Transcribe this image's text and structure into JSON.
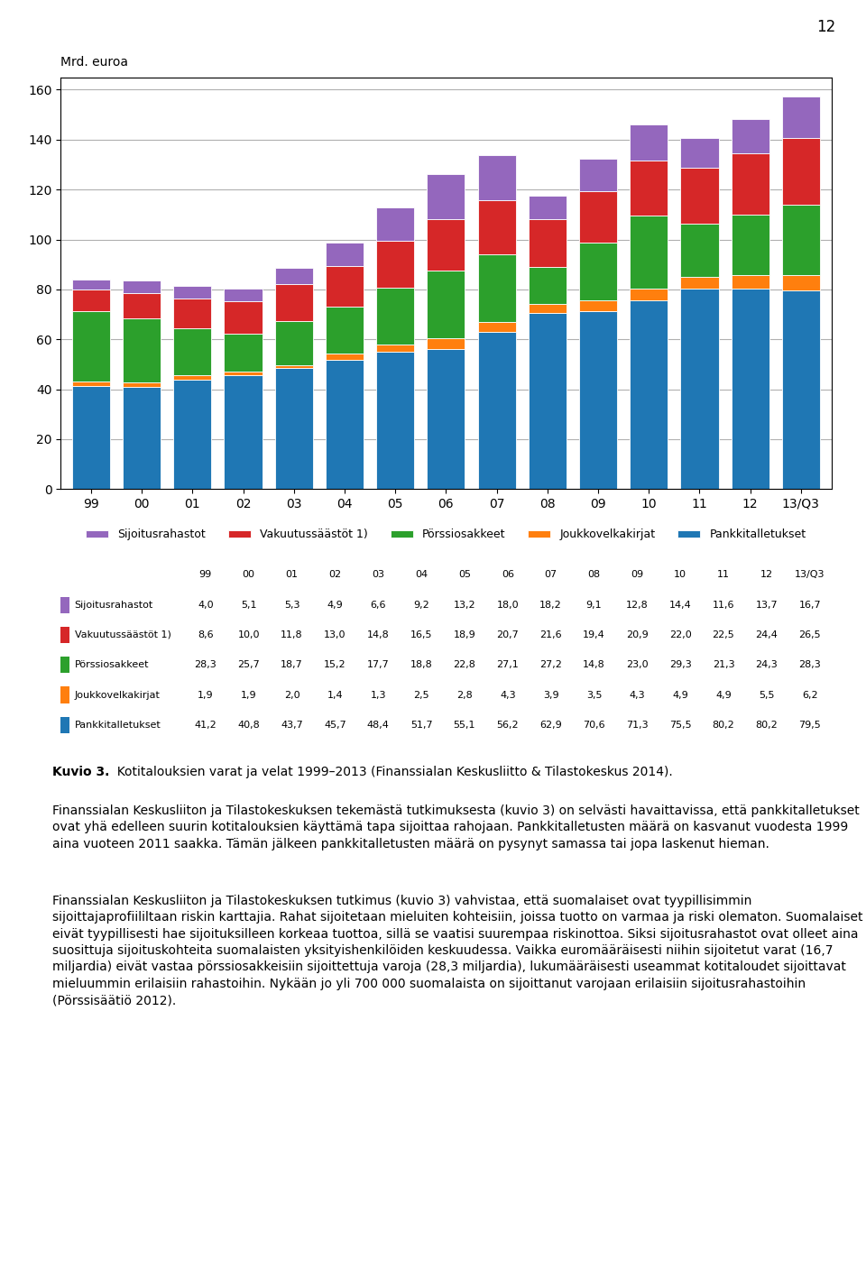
{
  "chart_data": {
    "type": "bar",
    "stacked": true,
    "y_label": "Mrd. euroa",
    "categories": [
      "99",
      "00",
      "01",
      "02",
      "03",
      "04",
      "05",
      "06",
      "07",
      "08",
      "09",
      "10",
      "11",
      "12",
      "13/Q3"
    ],
    "series": [
      {
        "name": "Pankkitalletukset",
        "values": [
          41.2,
          40.8,
          43.7,
          45.7,
          48.4,
          51.7,
          55.1,
          56.2,
          62.9,
          70.6,
          71.3,
          75.5,
          80.2,
          80.2,
          79.5
        ],
        "value_labels": [
          "41,2",
          "40,8",
          "43,7",
          "45,7",
          "48,4",
          "51,7",
          "55,1",
          "56,2",
          "62,9",
          "70,6",
          "71,3",
          "75,5",
          "80,2",
          "80,2",
          "79,5"
        ]
      },
      {
        "name": "Joukkovelkakirjat",
        "values": [
          1.9,
          1.9,
          2.0,
          1.4,
          1.3,
          2.5,
          2.8,
          4.3,
          3.9,
          3.5,
          4.3,
          4.9,
          4.9,
          5.5,
          6.2
        ],
        "value_labels": [
          "1,9",
          "1,9",
          "2,0",
          "1,4",
          "1,3",
          "2,5",
          "2,8",
          "4,3",
          "3,9",
          "3,5",
          "4,3",
          "4,9",
          "4,9",
          "5,5",
          "6,2"
        ]
      },
      {
        "name": "Pörssiosakkeet",
        "values": [
          28.3,
          25.7,
          18.7,
          15.2,
          17.7,
          18.8,
          22.8,
          27.1,
          27.2,
          14.8,
          23.0,
          29.3,
          21.3,
          24.3,
          28.3
        ],
        "value_labels": [
          "28,3",
          "25,7",
          "18,7",
          "15,2",
          "17,7",
          "18,8",
          "22,8",
          "27,1",
          "27,2",
          "14,8",
          "23,0",
          "29,3",
          "21,3",
          "24,3",
          "28,3"
        ]
      },
      {
        "name": "Vakuutussäästöt 1)",
        "values": [
          8.6,
          10.0,
          11.8,
          13.0,
          14.8,
          16.5,
          18.9,
          20.7,
          21.6,
          19.4,
          20.9,
          22.0,
          22.5,
          24.4,
          26.5
        ],
        "value_labels": [
          "8,6",
          "10,0",
          "11,8",
          "13,0",
          "14,8",
          "16,5",
          "18,9",
          "20,7",
          "21,6",
          "19,4",
          "20,9",
          "22,0",
          "22,5",
          "24,4",
          "26,5"
        ]
      },
      {
        "name": "Sijoitusrahastot",
        "values": [
          4.0,
          5.1,
          5.3,
          4.9,
          6.6,
          9.2,
          13.2,
          18.0,
          18.2,
          9.1,
          12.8,
          14.4,
          11.6,
          13.7,
          16.7
        ],
        "value_labels": [
          "4,0",
          "5,1",
          "5,3",
          "4,9",
          "6,6",
          "9,2",
          "13,2",
          "18,0",
          "18,2",
          "9,1",
          "12,8",
          "14,4",
          "11,6",
          "13,7",
          "16,7"
        ]
      }
    ],
    "ylim": [
      0,
      165
    ],
    "yticks": [
      0,
      20,
      40,
      60,
      80,
      100,
      120,
      140,
      160
    ],
    "grid": true,
    "legend": "upper center",
    "annotations": [
      "12",
      "Kuvio 3.",
      "  Kotitalouksien varat ja velat 1999–2013 (Finanssialan Keskusliitto & Tilastokeskus 2014).",
      "Finanssialan Keskusliiton ja Tilastokeskuksen tekemästä tutkimuksesta (kuvio 3) on selvästi havaittavissa, että pankkitalletukset ovat yhä edelleen suurin kotitalouksien käyttämä tapa sijoittaa rahojaan. Pankkitalletusten määrä on kasvanut vuodesta 1999 aina vuoteen 2011 saakka. Tämän jälkeen pankkitalletusten määrä on pysynyt samassa tai jopa laskenut hieman.",
      "Finanssialan Keskusliiton ja Tilastokeskuksen tutkimus (kuvio 3) vahvistaa, että suomalaiset ovat tyypillisimmin sijoittajaprofiililtaan riskin karttajia. Rahat sijoitetaan mieluiten kohteisiin, joissa tuotto on varmaa ja riski olematon. Suomalaiset eivät tyypillisesti hae sijoituksilleen korkeaa tuottoa, sillä se vaatisi suurempaa riskinottoa. Siksi sijoitusrahastot ovat olleet aina suosittuja sijoituskohteita suomalaisten yksityishenkilöiden keskuudessa. Vaikka euromääräisesti niihin sijoitetut varat (16,7 miljardia) eivät vastaa pörssiosakkeisiin sijoittettuja varoja (28,3 miljardia), lukumääräisesti useammat kotitaloudet sijoittavat mieluummin erilaisiin rahastoihin. Nykään jo yli 700 000 suomalaista on sijoittanut varojaan erilaisiin sijoitusrahastoihin (Pörssisäätiö 2012)."
    ]
  }
}
